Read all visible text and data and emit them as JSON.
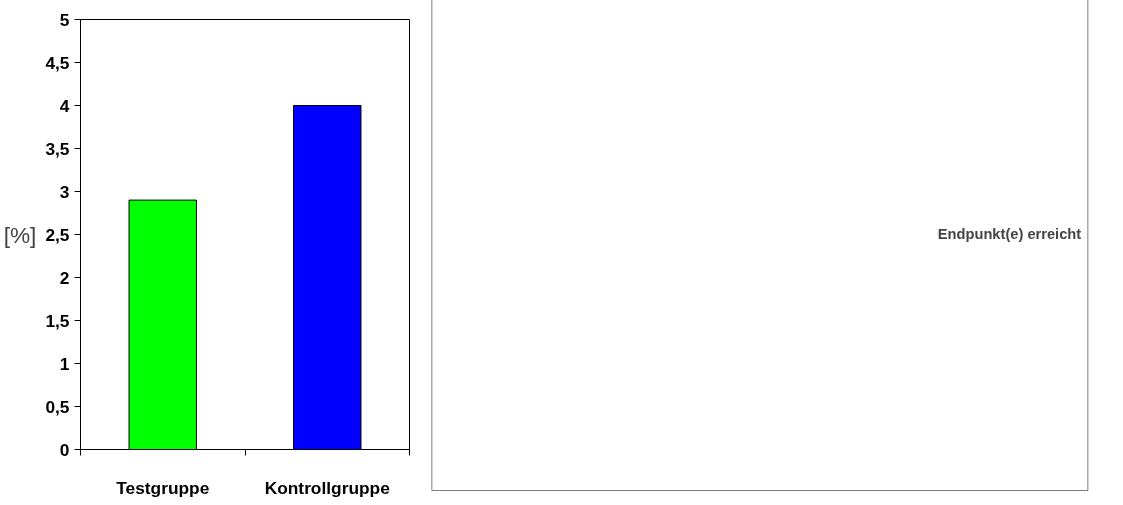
{
  "chart_data": {
    "type": "bar",
    "categories": [
      "Testgruppe",
      "Kontrollgruppe"
    ],
    "series": [
      {
        "name": "Endpunkt(e) erreicht",
        "values": [
          2.9,
          4.0
        ]
      }
    ],
    "colors": [
      "#00ff00",
      "#0000ff"
    ],
    "ylabel": "[%]",
    "legend": "right",
    "ylim": [
      0,
      5
    ],
    "yticks": [
      {
        "value": 0,
        "label": "0"
      },
      {
        "value": 0.5,
        "label": "0,5"
      },
      {
        "value": 1,
        "label": "1"
      },
      {
        "value": 1.5,
        "label": "1,5"
      },
      {
        "value": 2,
        "label": "2"
      },
      {
        "value": 2.5,
        "label": "2,5"
      },
      {
        "value": 3,
        "label": "3"
      },
      {
        "value": 3.5,
        "label": "3,5"
      },
      {
        "value": 4,
        "label": "4"
      },
      {
        "value": 4.5,
        "label": "4,5"
      },
      {
        "value": 5,
        "label": "5"
      }
    ],
    "grid": false
  }
}
